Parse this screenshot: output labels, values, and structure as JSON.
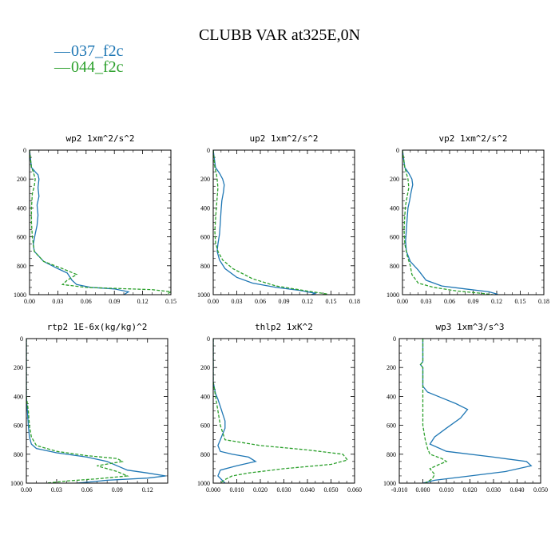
{
  "figure": {
    "title": "CLUBB VAR at325E,0N",
    "legend": [
      {
        "label": "037_f2c",
        "color": "#1f77b4",
        "dash": "solid"
      },
      {
        "label": "044_f2c",
        "color": "#2ca02c",
        "dash": "dashed"
      }
    ]
  },
  "chart_data": [
    {
      "type": "line",
      "title": "wp2  1xm^2/s^2",
      "xlim": [
        0,
        0.15
      ],
      "ylim": [
        1000,
        0
      ],
      "xticks": [
        "0.00",
        "0.03",
        "0.06",
        "0.09",
        "0.12",
        "0.15"
      ],
      "yticks": [
        "0",
        "200",
        "400",
        "600",
        "800",
        "1000"
      ],
      "series": [
        {
          "name": "037_f2c",
          "x": [
            0,
            0.002,
            0.006,
            0.009,
            0.01,
            0.009,
            0.01,
            0.008,
            0.009,
            0.008,
            0.006,
            0.004,
            0.005,
            0.015,
            0.03,
            0.04,
            0.045,
            0.05,
            0.065,
            0.09,
            0.105,
            0.1
          ],
          "y": [
            0,
            120,
            150,
            170,
            200,
            260,
            320,
            380,
            450,
            520,
            580,
            650,
            700,
            770,
            820,
            850,
            900,
            930,
            950,
            960,
            980,
            1000
          ]
        },
        {
          "name": "044_f2c",
          "x": [
            0,
            0.002,
            0.004,
            0.006,
            0.005,
            0.003,
            0.002,
            0.002,
            0.003,
            0.005,
            0.015,
            0.035,
            0.05,
            0.04,
            0.035,
            0.06,
            0.13,
            0.15,
            0.145
          ],
          "y": [
            0,
            120,
            150,
            200,
            250,
            300,
            400,
            500,
            600,
            700,
            770,
            820,
            860,
            900,
            930,
            950,
            965,
            980,
            1000
          ]
        }
      ]
    },
    {
      "type": "line",
      "title": "up2  1xm^2/s^2",
      "xlim": [
        0,
        0.18
      ],
      "ylim": [
        1000,
        0
      ],
      "xticks": [
        "0.00",
        "0.03",
        "0.06",
        "0.09",
        "0.12",
        "0.15",
        "0.18"
      ],
      "yticks": [
        "0",
        "200",
        "400",
        "600",
        "800",
        "1000"
      ],
      "series": [
        {
          "name": "037_f2c",
          "x": [
            0,
            0.003,
            0.008,
            0.012,
            0.014,
            0.013,
            0.011,
            0.01,
            0.009,
            0.008,
            0.006,
            0.005,
            0.008,
            0.015,
            0.03,
            0.05,
            0.08,
            0.11,
            0.13,
            0.125
          ],
          "y": [
            0,
            120,
            160,
            200,
            240,
            290,
            350,
            420,
            500,
            580,
            650,
            700,
            760,
            820,
            880,
            920,
            950,
            970,
            990,
            1000
          ]
        },
        {
          "name": "044_f2c",
          "x": [
            0,
            0.002,
            0.004,
            0.005,
            0.006,
            0.005,
            0.004,
            0.003,
            0.002,
            0.003,
            0.006,
            0.012,
            0.025,
            0.05,
            0.08,
            0.12,
            0.145,
            0.14
          ],
          "y": [
            0,
            120,
            160,
            200,
            260,
            330,
            400,
            480,
            560,
            640,
            700,
            760,
            820,
            890,
            940,
            975,
            995,
            1000
          ]
        }
      ]
    },
    {
      "type": "line",
      "title": "vp2  1xm^2/s^2",
      "xlim": [
        0,
        0.18
      ],
      "ylim": [
        1000,
        0
      ],
      "xticks": [
        "0.00",
        "0.03",
        "0.06",
        "0.09",
        "0.12",
        "0.15",
        "0.18"
      ],
      "yticks": [
        "0",
        "200",
        "400",
        "600",
        "800",
        "1000"
      ],
      "series": [
        {
          "name": "037_f2c",
          "x": [
            0,
            0.003,
            0.008,
            0.012,
            0.013,
            0.011,
            0.009,
            0.007,
            0.006,
            0.005,
            0.004,
            0.005,
            0.01,
            0.02,
            0.03,
            0.05,
            0.08,
            0.11,
            0.12,
            0.118
          ],
          "y": [
            0,
            120,
            160,
            200,
            240,
            290,
            350,
            400,
            470,
            550,
            630,
            700,
            770,
            830,
            900,
            940,
            960,
            980,
            995,
            1000
          ]
        },
        {
          "name": "044_f2c",
          "x": [
            0,
            0.003,
            0.005,
            0.007,
            0.008,
            0.006,
            0.004,
            0.003,
            0.002,
            0.003,
            0.006,
            0.01,
            0.012,
            0.02,
            0.04,
            0.07,
            0.1,
            0.115
          ],
          "y": [
            0,
            120,
            160,
            200,
            260,
            320,
            380,
            450,
            550,
            650,
            730,
            800,
            860,
            920,
            950,
            975,
            990,
            1000
          ]
        }
      ]
    },
    {
      "type": "line",
      "title": "rtp2  1E-6x(kg/kg)^2",
      "xlim": [
        0,
        0.14
      ],
      "ylim": [
        1000,
        0
      ],
      "xticks": [
        "0.00",
        "0.03",
        "0.06",
        "0.09",
        "0.12"
      ],
      "yticks": [
        "0",
        "200",
        "400",
        "600",
        "800",
        "1000"
      ],
      "series": [
        {
          "name": "037_f2c",
          "x": [
            0,
            0.0,
            0.001,
            0.002,
            0.003,
            0.005,
            0.01,
            0.03,
            0.06,
            0.08,
            0.09,
            0.1,
            0.12,
            0.138,
            0.12,
            0.08,
            0.05
          ],
          "y": [
            0,
            400,
            500,
            600,
            680,
            730,
            760,
            790,
            820,
            850,
            880,
            910,
            930,
            950,
            965,
            980,
            1000
          ]
        },
        {
          "name": "044_f2c",
          "x": [
            0,
            0.0,
            0.002,
            0.003,
            0.005,
            0.01,
            0.03,
            0.06,
            0.09,
            0.095,
            0.07,
            0.09,
            0.1,
            0.07,
            0.04,
            0.02
          ],
          "y": [
            0,
            400,
            500,
            600,
            680,
            740,
            780,
            810,
            830,
            850,
            880,
            920,
            950,
            970,
            985,
            1000
          ]
        }
      ]
    },
    {
      "type": "line",
      "title": "thlp2  1xK^2",
      "xlim": [
        0,
        0.06
      ],
      "ylim": [
        1000,
        0
      ],
      "xticks": [
        "0.000",
        "0.010",
        "0.020",
        "0.030",
        "0.040",
        "0.050",
        "0.060"
      ],
      "yticks": [
        "0",
        "200",
        "400",
        "600",
        "800",
        "1000"
      ],
      "series": [
        {
          "name": "037_f2c",
          "x": [
            0,
            0.0,
            0.001,
            0.002,
            0.003,
            0.004,
            0.005,
            0.005,
            0.004,
            0.003,
            0.002,
            0.003,
            0.008,
            0.015,
            0.018,
            0.01,
            0.003,
            0.002,
            0.005
          ],
          "y": [
            0,
            300,
            380,
            420,
            470,
            520,
            570,
            620,
            660,
            700,
            740,
            780,
            800,
            820,
            850,
            880,
            910,
            950,
            1000
          ]
        },
        {
          "name": "044_f2c",
          "x": [
            0,
            0.0,
            0.001,
            0.002,
            0.003,
            0.005,
            0.02,
            0.04,
            0.055,
            0.057,
            0.05,
            0.03,
            0.015,
            0.008,
            0.005,
            0.003
          ],
          "y": [
            0,
            300,
            400,
            500,
            600,
            700,
            740,
            770,
            800,
            840,
            870,
            900,
            930,
            950,
            975,
            1000
          ]
        }
      ]
    },
    {
      "type": "line",
      "title": "wp3  1xm^3/s^3",
      "xlim": [
        -0.01,
        0.05
      ],
      "ylim": [
        1000,
        0
      ],
      "xticks": [
        "-0.010",
        "0.000",
        "0.010",
        "0.020",
        "0.030",
        "0.040",
        "0.050"
      ],
      "yticks": [
        "0",
        "200",
        "400",
        "600",
        "800",
        "1000"
      ],
      "series": [
        {
          "name": "037_f2c",
          "x": [
            0,
            0.0,
            -0.001,
            0.0,
            0.0,
            0.002,
            0.008,
            0.014,
            0.019,
            0.016,
            0.01,
            0.005,
            0.003,
            0.01,
            0.03,
            0.044,
            0.046,
            0.035,
            0.02,
            0.005,
            0.0
          ],
          "y": [
            0,
            160,
            180,
            200,
            330,
            370,
            410,
            450,
            490,
            550,
            620,
            680,
            730,
            780,
            820,
            850,
            880,
            920,
            950,
            980,
            1000
          ]
        },
        {
          "name": "044_f2c",
          "x": [
            0,
            0.0,
            -0.001,
            0.0,
            0.0,
            0.0,
            0.001,
            0.002,
            0.003,
            0.008,
            0.01,
            0.007,
            0.003,
            0.005,
            0.004,
            0.001
          ],
          "y": [
            0,
            160,
            180,
            200,
            400,
            600,
            700,
            760,
            800,
            830,
            850,
            870,
            900,
            940,
            970,
            1000
          ]
        }
      ]
    }
  ]
}
